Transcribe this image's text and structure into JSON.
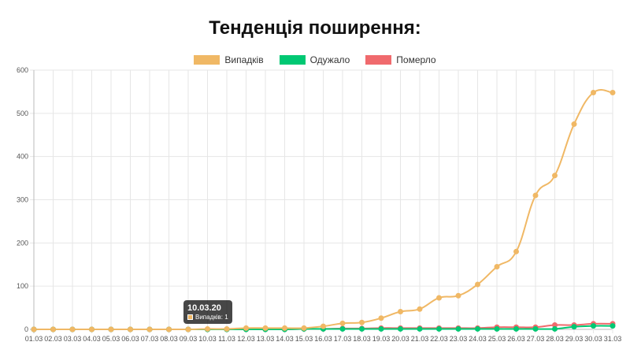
{
  "chart_data": {
    "type": "line",
    "title": "Тенденція поширення:",
    "xlabel": "",
    "ylabel": "",
    "ylim": [
      0,
      600
    ],
    "yticks": [
      0,
      100,
      200,
      300,
      400,
      500,
      600
    ],
    "grid": true,
    "legend_position": "top",
    "categories": [
      "01.03",
      "02.03",
      "03.03",
      "04.03",
      "05.03",
      "06.03",
      "07.03",
      "08.03",
      "09.03",
      "10.03",
      "11.03",
      "12.03",
      "13.03",
      "14.03",
      "15.03",
      "16.03",
      "17.03",
      "18.03",
      "19.03",
      "20.03",
      "21.03",
      "22.03",
      "23.03",
      "24.03",
      "25.03",
      "26.03",
      "27.03",
      "28.03",
      "29.03",
      "30.03",
      "31.03"
    ],
    "series": [
      {
        "name": "Випадків",
        "color": "#f0b865",
        "values": [
          0,
          0,
          0,
          0,
          0,
          0,
          0,
          0,
          0,
          1,
          1,
          3,
          3,
          3,
          3,
          7,
          14,
          16,
          26,
          41,
          47,
          73,
          78,
          104,
          145,
          180,
          310,
          356,
          475,
          548,
          548
        ]
      },
      {
        "name": "Одужало",
        "color": "#00c873",
        "values": [
          0,
          0,
          0,
          0,
          0,
          0,
          0,
          0,
          0,
          0,
          0,
          0,
          0,
          0,
          1,
          1,
          1,
          1,
          1,
          1,
          1,
          1,
          1,
          1,
          1,
          1,
          1,
          1,
          6,
          8,
          8
        ]
      },
      {
        "name": "Померло",
        "color": "#f06a6d",
        "values": [
          0,
          0,
          0,
          0,
          0,
          0,
          0,
          0,
          0,
          0,
          0,
          0,
          0,
          0,
          1,
          1,
          2,
          2,
          3,
          3,
          3,
          3,
          3,
          3,
          5,
          5,
          5,
          10,
          10,
          13,
          13
        ]
      }
    ],
    "tooltip": {
      "title": "10.03.20",
      "label": "Випадків: 1"
    }
  }
}
